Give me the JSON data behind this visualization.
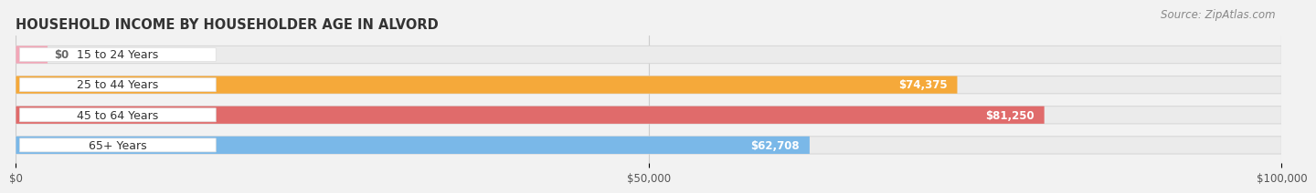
{
  "title": "HOUSEHOLD INCOME BY HOUSEHOLDER AGE IN ALVORD",
  "source": "Source: ZipAtlas.com",
  "categories": [
    "15 to 24 Years",
    "25 to 44 Years",
    "45 to 64 Years",
    "65+ Years"
  ],
  "values": [
    0,
    74375,
    81250,
    62708
  ],
  "bar_colors": [
    "#f2a7b8",
    "#f5a93a",
    "#e06b6b",
    "#7ab8e8"
  ],
  "bar_bg_color": "#ebebeb",
  "bar_bg_edge": "#d8d8d8",
  "value_labels": [
    "$0",
    "$74,375",
    "$81,250",
    "$62,708"
  ],
  "value_label_color": "#ffffff",
  "value_label_color_zero": "#666666",
  "xlim": [
    0,
    100000
  ],
  "xticks": [
    0,
    50000,
    100000
  ],
  "xtick_labels": [
    "$0",
    "$50,000",
    "$100,000"
  ],
  "bg_color": "#f2f2f2",
  "bar_height": 0.58,
  "title_fontsize": 10.5,
  "source_fontsize": 8.5,
  "label_fontsize": 9,
  "value_fontsize": 8.5,
  "tick_fontsize": 8.5,
  "pill_bg": "#ffffff",
  "pill_edge": "#dddddd"
}
